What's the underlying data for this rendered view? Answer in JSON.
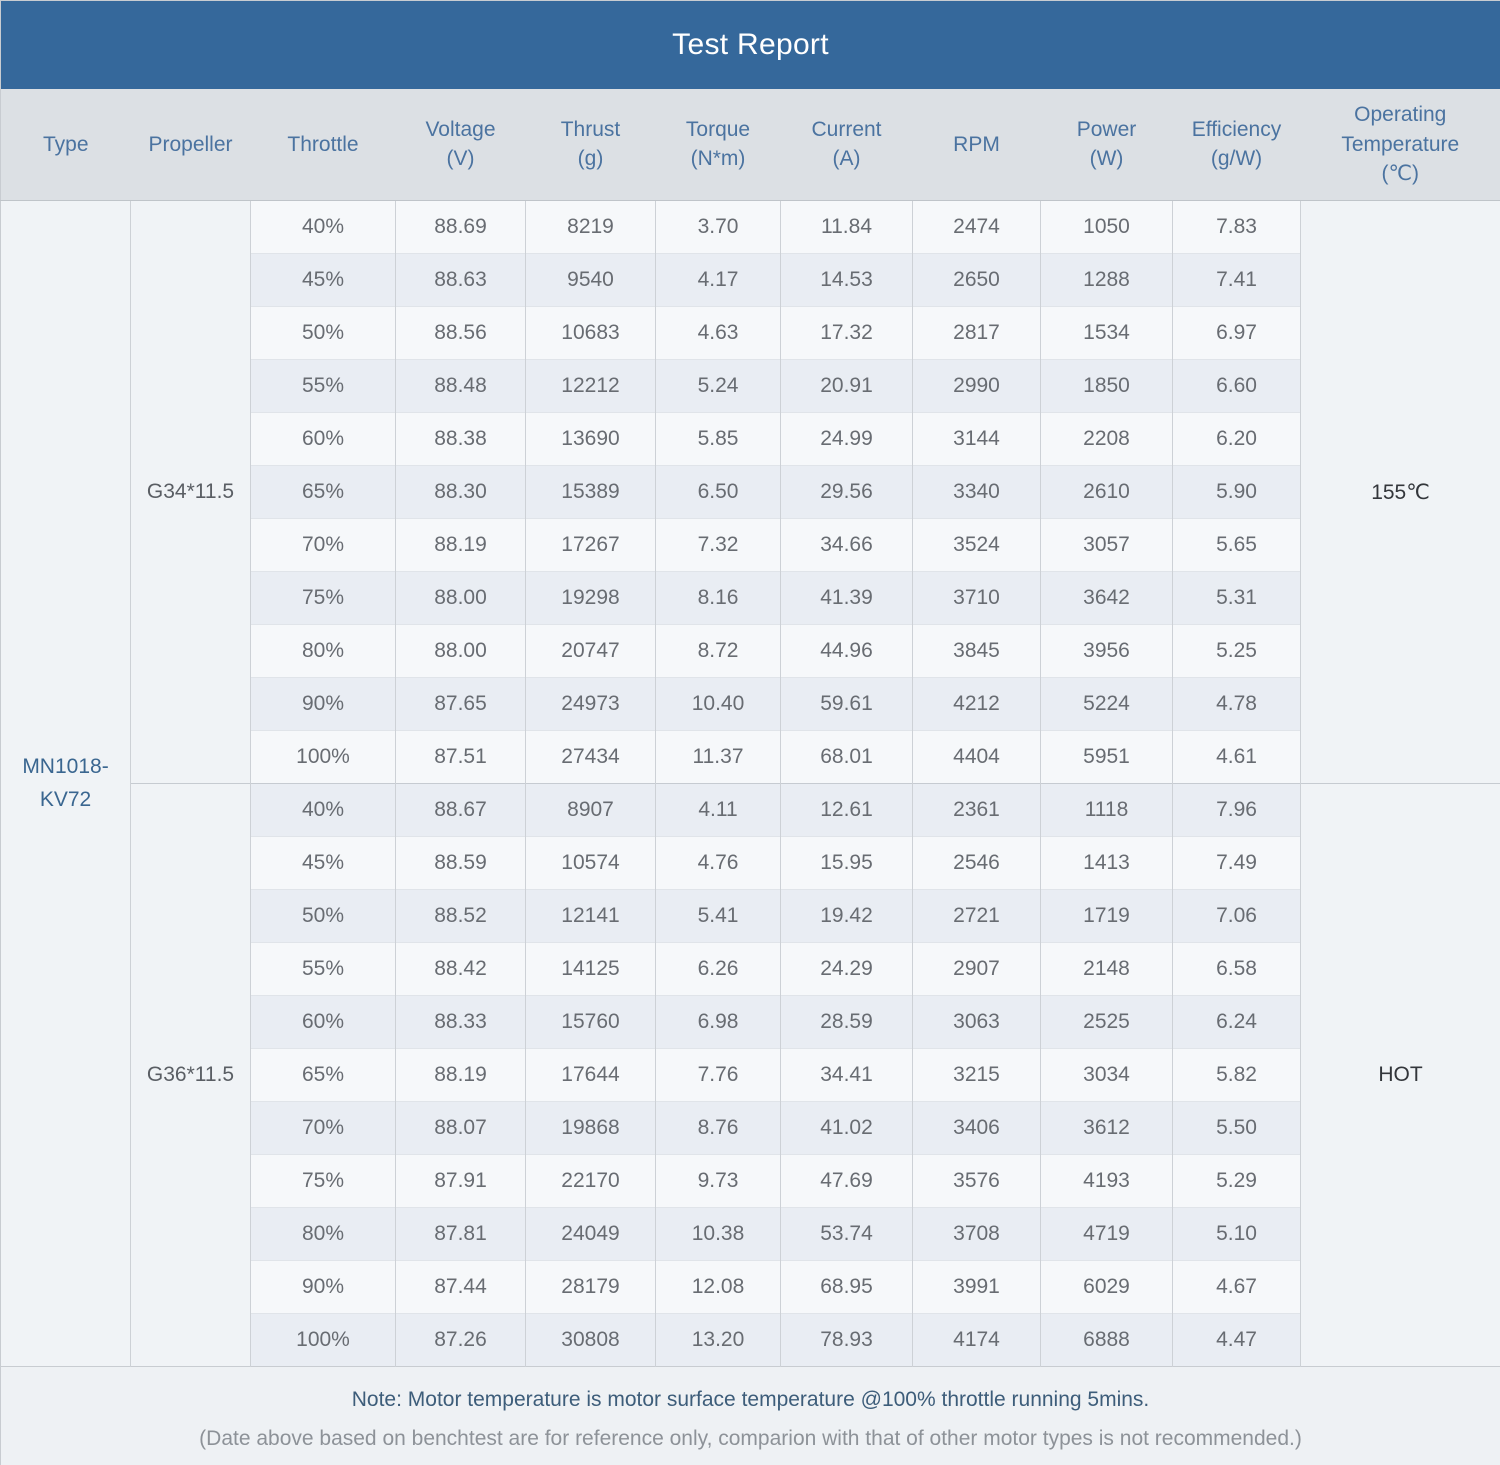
{
  "table": {
    "title": "Test Report",
    "type": "MN1018-KV72",
    "columns": [
      {
        "key": "type",
        "label": "Type",
        "unit": ""
      },
      {
        "key": "propeller",
        "label": "Propeller",
        "unit": ""
      },
      {
        "key": "throttle",
        "label": "Throttle",
        "unit": ""
      },
      {
        "key": "voltage",
        "label": "Voltage",
        "unit": "(V)"
      },
      {
        "key": "thrust",
        "label": "Thrust",
        "unit": "(g)"
      },
      {
        "key": "torque",
        "label": "Torque",
        "unit": "(N*m)"
      },
      {
        "key": "current",
        "label": "Current",
        "unit": "(A)"
      },
      {
        "key": "rpm",
        "label": "RPM",
        "unit": ""
      },
      {
        "key": "power",
        "label": "Power",
        "unit": "(W)"
      },
      {
        "key": "efficiency",
        "label": "Efficiency",
        "unit": "(g/W)"
      },
      {
        "key": "operating-temperature",
        "label": "Operating Temperature",
        "unit": "(℃)"
      }
    ],
    "groups": [
      {
        "propeller": "G34*11.5",
        "temperature": "155℃",
        "rows": [
          [
            "40%",
            "88.69",
            "8219",
            "3.70",
            "11.84",
            "2474",
            "1050",
            "7.83"
          ],
          [
            "45%",
            "88.63",
            "9540",
            "4.17",
            "14.53",
            "2650",
            "1288",
            "7.41"
          ],
          [
            "50%",
            "88.56",
            "10683",
            "4.63",
            "17.32",
            "2817",
            "1534",
            "6.97"
          ],
          [
            "55%",
            "88.48",
            "12212",
            "5.24",
            "20.91",
            "2990",
            "1850",
            "6.60"
          ],
          [
            "60%",
            "88.38",
            "13690",
            "5.85",
            "24.99",
            "3144",
            "2208",
            "6.20"
          ],
          [
            "65%",
            "88.30",
            "15389",
            "6.50",
            "29.56",
            "3340",
            "2610",
            "5.90"
          ],
          [
            "70%",
            "88.19",
            "17267",
            "7.32",
            "34.66",
            "3524",
            "3057",
            "5.65"
          ],
          [
            "75%",
            "88.00",
            "19298",
            "8.16",
            "41.39",
            "3710",
            "3642",
            "5.31"
          ],
          [
            "80%",
            "88.00",
            "20747",
            "8.72",
            "44.96",
            "3845",
            "3956",
            "5.25"
          ],
          [
            "90%",
            "87.65",
            "24973",
            "10.40",
            "59.61",
            "4212",
            "5224",
            "4.78"
          ],
          [
            "100%",
            "87.51",
            "27434",
            "11.37",
            "68.01",
            "4404",
            "5951",
            "4.61"
          ]
        ]
      },
      {
        "propeller": "G36*11.5",
        "temperature": "HOT",
        "rows": [
          [
            "40%",
            "88.67",
            "8907",
            "4.11",
            "12.61",
            "2361",
            "1118",
            "7.96"
          ],
          [
            "45%",
            "88.59",
            "10574",
            "4.76",
            "15.95",
            "2546",
            "1413",
            "7.49"
          ],
          [
            "50%",
            "88.52",
            "12141",
            "5.41",
            "19.42",
            "2721",
            "1719",
            "7.06"
          ],
          [
            "55%",
            "88.42",
            "14125",
            "6.26",
            "24.29",
            "2907",
            "2148",
            "6.58"
          ],
          [
            "60%",
            "88.33",
            "15760",
            "6.98",
            "28.59",
            "3063",
            "2525",
            "6.24"
          ],
          [
            "65%",
            "88.19",
            "17644",
            "7.76",
            "34.41",
            "3215",
            "3034",
            "5.82"
          ],
          [
            "70%",
            "88.07",
            "19868",
            "8.76",
            "41.02",
            "3406",
            "3612",
            "5.50"
          ],
          [
            "75%",
            "87.91",
            "22170",
            "9.73",
            "47.69",
            "3576",
            "4193",
            "5.29"
          ],
          [
            "80%",
            "87.81",
            "24049",
            "10.38",
            "53.74",
            "3708",
            "4719",
            "5.10"
          ],
          [
            "90%",
            "87.44",
            "28179",
            "12.08",
            "68.95",
            "3991",
            "6029",
            "4.67"
          ],
          [
            "100%",
            "87.26",
            "30808",
            "13.20",
            "78.93",
            "4174",
            "6888",
            "4.47"
          ]
        ]
      }
    ],
    "notes": [
      "Note: Motor temperature is motor surface temperature @100% throttle running 5mins.",
      "(Date above based on benchtest are for reference only, comparion with that of other motor types is not recommended.)"
    ]
  },
  "colors": {
    "title_bar": "#35689b",
    "header_bg": "#dce0e4",
    "header_text": "#4b73a0",
    "row_odd": "#f6f8fa",
    "row_even": "#e9edf3",
    "body_text": "#686c72",
    "type_text": "#3a6690"
  }
}
